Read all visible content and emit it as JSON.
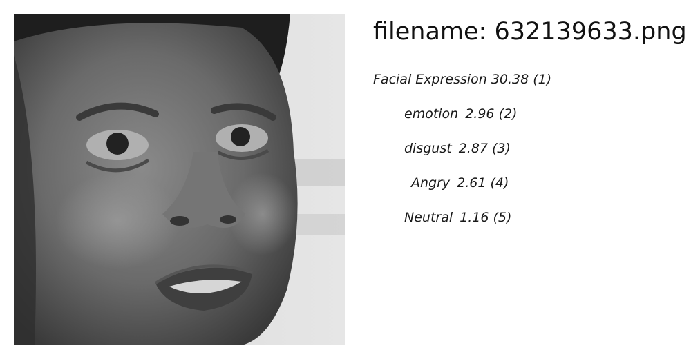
{
  "header": {
    "filename_label": "filename:",
    "filename": "632139633.png"
  },
  "photo": {
    "description": "grayscale-face-photo"
  },
  "labels": [
    {
      "label": "Facial Expression",
      "score": "30.38",
      "rank": "(1)"
    },
    {
      "label": "emotion",
      "score": "2.96",
      "rank": "(2)"
    },
    {
      "label": "disgust",
      "score": "2.87",
      "rank": "(3)"
    },
    {
      "label": "Angry",
      "score": "2.61",
      "rank": "(4)"
    },
    {
      "label": "Neutral",
      "score": "1.16",
      "rank": "(5)"
    }
  ]
}
